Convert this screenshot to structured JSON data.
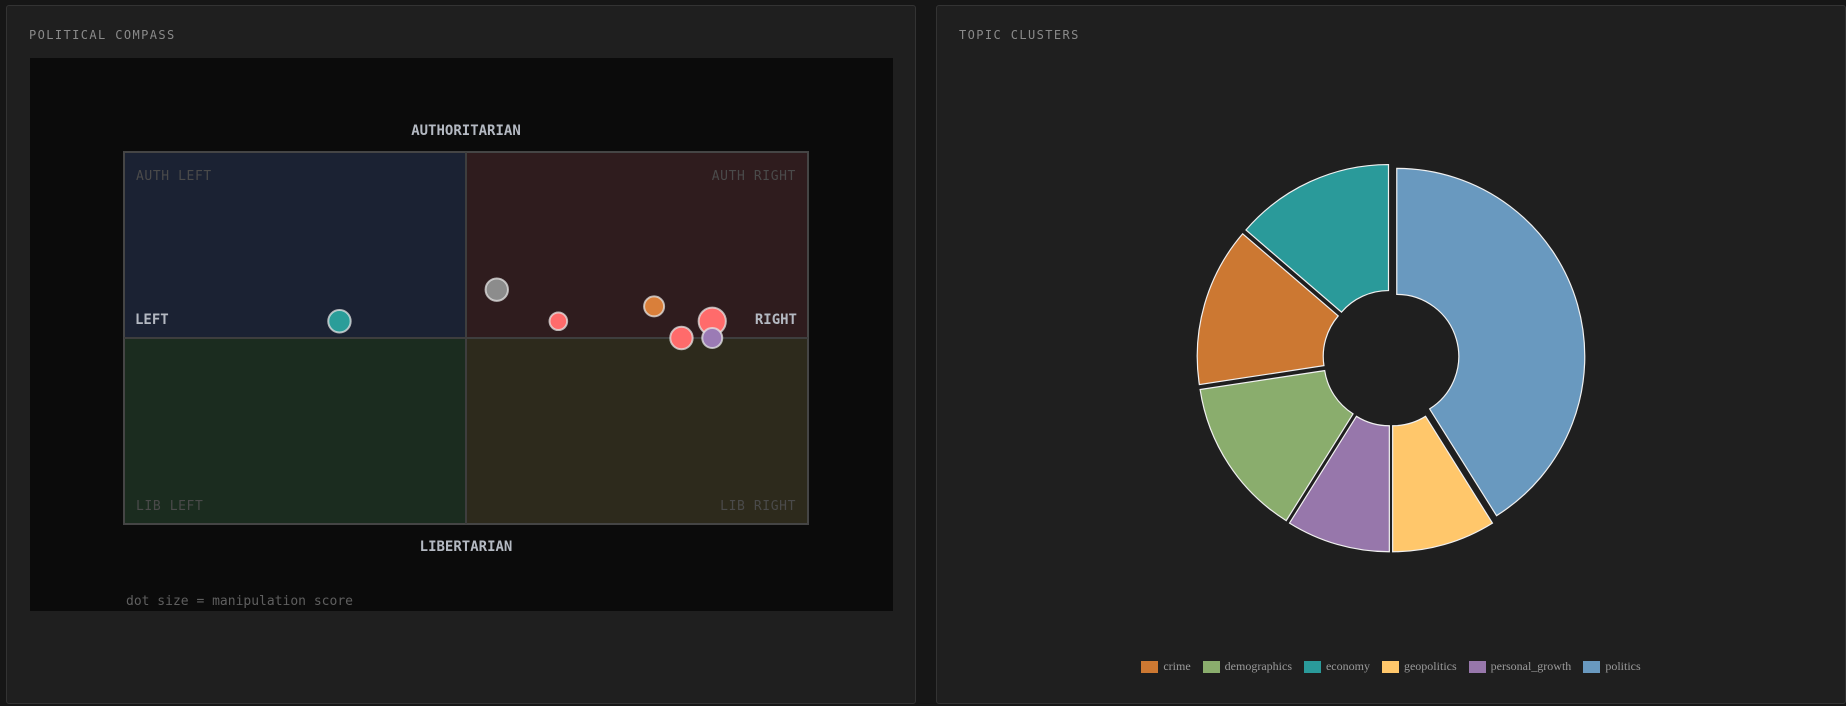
{
  "compass": {
    "title": "POLITICAL COMPASS",
    "note": "dot size = manipulation score",
    "axis_labels": {
      "top": "AUTHORITARIAN",
      "bottom": "LIBERTARIAN",
      "left": "LEFT",
      "right": "RIGHT"
    },
    "quadrants": {
      "auth_left": "AUTH LEFT",
      "auth_right": "AUTH RIGHT",
      "lib_left": "LIB LEFT",
      "lib_right": "LIB RIGHT"
    },
    "colors": {
      "auth_left": "#1b2233",
      "auth_right": "#2f1c1e",
      "lib_left": "#1b2c1f",
      "lib_right": "#2d2a1c"
    }
  },
  "topics": {
    "title": "TOPIC CLUSTERS"
  },
  "chart_data": [
    {
      "type": "scatter",
      "title": "POLITICAL COMPASS",
      "xlabel": "LEFT / RIGHT",
      "ylabel": "LIBERTARIAN / AUTHORITARIAN",
      "xlim": [
        -10,
        10
      ],
      "ylim": [
        -10,
        10
      ],
      "size_encoding": "manipulation score",
      "points": [
        {
          "x": -3.7,
          "y": 0.9,
          "size": 6,
          "color": "#2a9d99",
          "label": "economy"
        },
        {
          "x": 0.9,
          "y": 2.6,
          "size": 6,
          "color": "#8c8c8c",
          "label": ""
        },
        {
          "x": 2.7,
          "y": 0.9,
          "size": 4,
          "color": "#ff6b6b",
          "label": ""
        },
        {
          "x": 5.5,
          "y": 1.7,
          "size": 5,
          "color": "#d97f3a",
          "label": "crime"
        },
        {
          "x": 7.2,
          "y": 0.9,
          "size": 8,
          "color": "#ff6b6b",
          "label": ""
        },
        {
          "x": 6.3,
          "y": 0.0,
          "size": 6,
          "color": "#ff6b6b",
          "label": ""
        },
        {
          "x": 7.2,
          "y": 0.0,
          "size": 5,
          "color": "#9b7bb5",
          "label": "personal_growth"
        }
      ]
    },
    {
      "type": "pie",
      "title": "TOPIC CLUSTERS",
      "labels": [
        "politics",
        "geopolitics",
        "personal_growth",
        "demographics",
        "crime",
        "economy"
      ],
      "values": [
        6,
        1.3,
        1.3,
        2,
        2,
        2
      ],
      "colors": [
        "#6999bf",
        "#ffc76b",
        "#9777ab",
        "#8aad6d",
        "#cc7832",
        "#2a9a9a"
      ],
      "legend_order": [
        "crime",
        "demographics",
        "economy",
        "geopolitics",
        "personal_growth",
        "politics"
      ],
      "legend_position": "bottom"
    }
  ]
}
